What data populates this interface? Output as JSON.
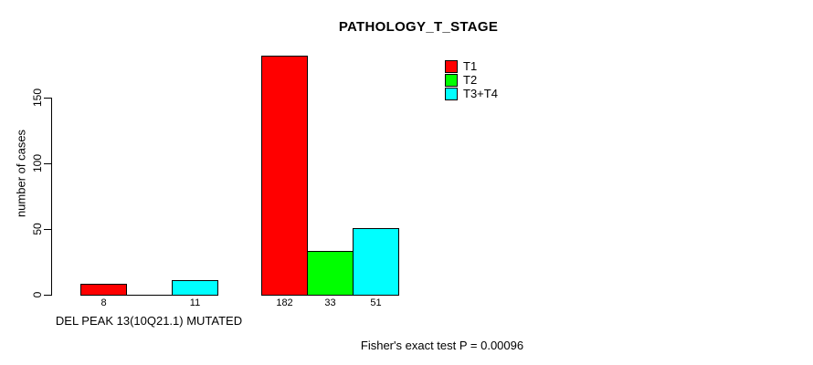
{
  "chart_data": {
    "type": "bar",
    "title": "PATHOLOGY_T_STAGE",
    "ylabel": "number of cases",
    "categories": [
      "DEL PEAK 13(10Q21.1) MUTATED",
      ""
    ],
    "series": [
      {
        "name": "T1",
        "color": "#ff0000",
        "values": [
          8,
          182
        ]
      },
      {
        "name": "T2",
        "color": "#00ff00",
        "values": [
          0,
          33
        ]
      },
      {
        "name": "T3+T4",
        "color": "#00ffff",
        "values": [
          11,
          51
        ]
      }
    ],
    "yticks": [
      0,
      50,
      100,
      150
    ],
    "ylim": [
      0,
      185
    ],
    "grid": false,
    "legend_position": "top-right-inside",
    "bar_value_labels_visible": true,
    "annotation": "Fisher's exact test P = 0.00096"
  },
  "colors": {
    "axis": "#000000",
    "background": "#ffffff"
  }
}
